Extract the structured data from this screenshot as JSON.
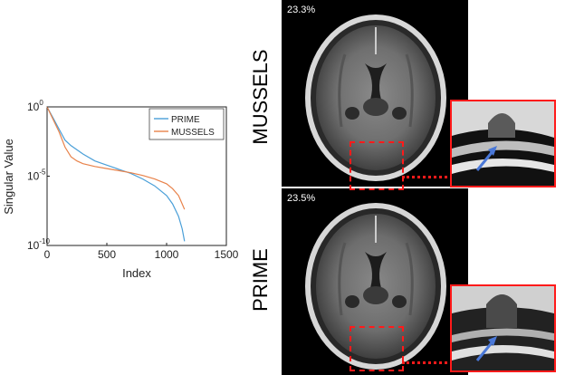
{
  "chart_data": {
    "type": "line",
    "xlabel": "Index",
    "ylabel": "Singular Value",
    "xlim": [
      0,
      1500
    ],
    "ylim_log10": [
      -10,
      0
    ],
    "x_ticks": [
      "0",
      "500",
      "1000",
      "1500"
    ],
    "y_ticks": [
      {
        "base": "10",
        "exp": "0",
        "log": 0
      },
      {
        "base": "10",
        "exp": "-5",
        "log": -5
      },
      {
        "base": "10",
        "exp": "-10",
        "log": -10
      }
    ],
    "legend_position": "top-right",
    "series": [
      {
        "name": "PRIME",
        "color": "#4a9fd8",
        "x": [
          0,
          50,
          100,
          150,
          200,
          300,
          400,
          500,
          600,
          700,
          800,
          900,
          1000,
          1050,
          1100,
          1130,
          1150
        ],
        "log10": [
          0,
          -0.8,
          -1.6,
          -2.4,
          -2.8,
          -3.4,
          -3.9,
          -4.2,
          -4.5,
          -4.8,
          -5.2,
          -5.7,
          -6.4,
          -7.0,
          -7.9,
          -8.8,
          -9.7
        ]
      },
      {
        "name": "MUSSELS",
        "color": "#e8824a",
        "x": [
          0,
          50,
          100,
          150,
          200,
          250,
          300,
          400,
          500,
          600,
          700,
          800,
          900,
          1000,
          1050,
          1100,
          1130,
          1150
        ],
        "log10": [
          0,
          -0.9,
          -1.8,
          -2.9,
          -3.6,
          -3.9,
          -4.1,
          -4.3,
          -4.45,
          -4.6,
          -4.75,
          -4.95,
          -5.2,
          -5.55,
          -5.9,
          -6.4,
          -7.0,
          -7.4
        ]
      }
    ]
  },
  "panels": {
    "top": {
      "label": "MUSSELS",
      "percent": "23.3%"
    },
    "bottom": {
      "label": "PRIME",
      "percent": "23.5%"
    }
  },
  "colors": {
    "highlight": "#ff1a1a",
    "arrow": "#4a78d8"
  }
}
